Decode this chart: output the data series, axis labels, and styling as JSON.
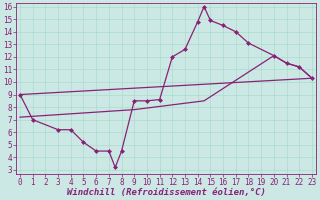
{
  "bg_color": "#cce8e4",
  "line_color": "#882277",
  "grid_color": "#aaddcc",
  "line1_x": [
    0,
    1,
    3,
    4,
    5,
    6,
    7,
    7.5,
    8,
    9,
    10,
    11,
    12,
    13,
    14,
    14.5,
    15,
    16,
    17,
    18,
    20,
    21,
    22,
    23
  ],
  "line1_y": [
    9,
    7,
    6.2,
    6.2,
    5.2,
    4.5,
    4.5,
    3.2,
    4.5,
    8.5,
    8.5,
    8.6,
    12.0,
    12.6,
    14.8,
    16.0,
    14.9,
    14.5,
    14.0,
    13.1,
    12.1,
    11.5,
    11.2,
    10.3
  ],
  "line2_x": [
    0,
    23
  ],
  "line2_y": [
    9.0,
    10.3
  ],
  "line3_x": [
    0,
    9,
    14.5,
    20,
    21,
    22,
    23
  ],
  "line3_y": [
    7.2,
    7.8,
    8.5,
    12.1,
    11.5,
    11.2,
    10.3
  ],
  "xlabel": "Windchill (Refroidissement éolien,°C)",
  "xlim": [
    -0.3,
    23.3
  ],
  "ylim": [
    2.7,
    16.3
  ],
  "xticks": [
    0,
    1,
    2,
    3,
    4,
    5,
    6,
    7,
    8,
    9,
    10,
    11,
    12,
    13,
    14,
    15,
    16,
    17,
    18,
    19,
    20,
    21,
    22,
    23
  ],
  "yticks": [
    3,
    4,
    5,
    6,
    7,
    8,
    9,
    10,
    11,
    12,
    13,
    14,
    15,
    16
  ],
  "tick_fontsize": 5.5,
  "xlabel_fontsize": 6.5,
  "markersize": 2.5,
  "linewidth": 0.9
}
